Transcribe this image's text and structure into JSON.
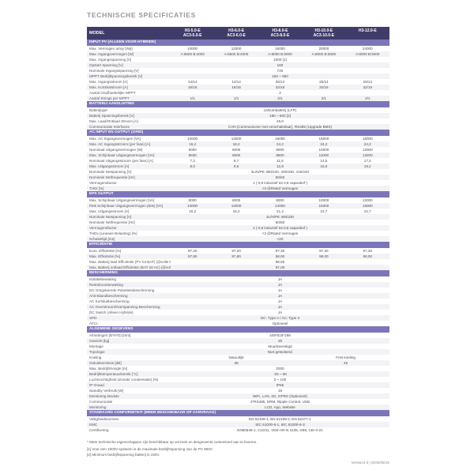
{
  "page_title": "TECHNISCHE SPECIFICATIES",
  "colors": {
    "header_bg": "#403c69",
    "section_bg": "#7c76b9",
    "stripe": "#f3f3f6",
    "title_text": "#98959f"
  },
  "table": {
    "model_header": {
      "label": "MODEL",
      "columns": [
        {
          "line1": "H3-5.0-E",
          "line2": "AC3-5.0-E"
        },
        {
          "line1": "H3-6.0-E",
          "line2": "AC3-6.0-E"
        },
        {
          "line1": "H3-8.0-E",
          "line2": "AC3-8.0-E"
        },
        {
          "line1": "H3-10.0-E",
          "line2": "AC3-10.0-E"
        },
        {
          "line1": "H3-12.0-E",
          "line2": ""
        }
      ]
    },
    "sections": [
      {
        "title": "INPUT PV (ALLEEN VOOR HYBRIDE)",
        "rows": [
          {
            "label": "Max. Vermogen array [Wp]",
            "values": [
              "10000",
              "12000",
              "16000",
              "20000",
              "24000"
            ]
          },
          {
            "label": "Max. Ingangsvermogen [W]",
            "values": [
              "A:6500 B:4000",
              "A:6500 B:4000",
              "A:8000 B:5000",
              "A:8000 B:5000",
              "A:8000 B:5000"
            ]
          },
          {
            "label": "Max. Ingangsspanning [V]",
            "value": "1000 [1]"
          },
          {
            "label": "Opstart Spanning [V]",
            "value": "160"
          },
          {
            "label": "Nominale Ingangsspanning [V]",
            "value": "720"
          },
          {
            "label": "MPPT Bedrijfspanningsbereik [V]",
            "value": "160 ~ 950"
          },
          {
            "label": "Max. Ingangsstroom [A]",
            "values": [
              "14/14",
              "14/14",
              "26/14",
              "26/14",
              "26/14"
            ]
          },
          {
            "label": "Max. Kortsluitstroom [A]",
            "values": [
              "16/16",
              "16/16",
              "32/16",
              "32/16",
              "32/16"
            ]
          },
          {
            "label": "Aantal Onafhankelijke MPPT",
            "value": "2"
          },
          {
            "label": "Aantal Strings per MPPT",
            "values": [
              "1/1",
              "1/1",
              "2/1",
              "2/1",
              "2/1"
            ]
          }
        ]
      },
      {
        "title": "BATTERIJ AANSLUITING",
        "rows": [
          {
            "label": "Batterijtype",
            "value": "Lithiumbatterij (LFP)"
          },
          {
            "label": "Batterij Spanningsbereik [V]",
            "value": "180 ~ 600 [2]"
          },
          {
            "label": "Max. Laad/Ontlaad Stroom [A]",
            "value": "26,0"
          },
          {
            "label": "Communicatie Interfaces",
            "value": "CAN (Communiceer met omschakelaar), RS485 (Upgrade BMS)"
          }
        ]
      },
      {
        "title": "AC INPUT EN OUTPUT (GRID)",
        "rows": [
          {
            "label": "Max. AC Ingangsvermogen [VA]",
            "values": [
              "10000",
              "12000",
              "16000",
              "16000",
              "16000"
            ]
          },
          {
            "label": "Max. AC Ingangsstroom (per fase) [A]",
            "values": [
              "15,2",
              "18,2",
              "24,2",
              "24,2",
              "24,2"
            ]
          },
          {
            "label": "Nominaal Uitgangsvermogen [W]",
            "values": [
              "5000",
              "6000",
              "8000",
              "10000",
              "12000"
            ]
          },
          {
            "label": "Max. Schijnbaar Uitgangsvermogen [VA]",
            "values": [
              "5500",
              "6600",
              "8800",
              "11000",
              "13200"
            ]
          },
          {
            "label": "Nominaal Uitgangsstroom (per fase) [A]",
            "values": [
              "7,2",
              "8,7",
              "11,6",
              "14,5",
              "17,4"
            ]
          },
          {
            "label": "Max. Uitgangsstroom [A]",
            "values": [
              "8,0",
              "9,6",
              "12,8",
              "16,0",
              "19,2"
            ]
          },
          {
            "label": "Nominale Netspanning [V]",
            "value": "3L/N/PE  380/220, 400/230, 415/240"
          },
          {
            "label": "Nominale Netfrequentie [Hz]",
            "value": "50/60"
          },
          {
            "label": "Vermogensfactor",
            "value": "1 ( 0,8 inductief tot 0,8 capacitief )"
          },
          {
            "label": "THDi [%]",
            "value": "<3 @Rated Vermogen"
          }
        ]
      },
      {
        "title": "EPS OUTPUT",
        "rows": [
          {
            "label": "Max. Schijnbaar Uitgangsvermogen [VA]",
            "values": [
              "5000",
              "6000",
              "8000",
              "10000",
              "12000"
            ]
          },
          {
            "label": "Piek Schijnbaar Uitgangsvermogen (60s) [VA]",
            "values": [
              "10000",
              "12000",
              "14000",
              "15000",
              "15000"
            ]
          },
          {
            "label": "Max. Uitgangsstroom [A]",
            "values": [
              "15,2",
              "18,2",
              "21,2",
              "22,7",
              "22,7"
            ]
          },
          {
            "label": "Nominale Netspanning [V]",
            "value": "3L/N/PE  400/230"
          },
          {
            "label": "Nominale Netfrequentie [Hz]",
            "value": "50/60"
          },
          {
            "label": "Vermogensfactor",
            "value": "1 ( 0,8 inductief tot 0,8 capacitief )"
          },
          {
            "label": "THDv (Lineaire Belasting) [%]",
            "value": "<3 @Rated Vermogen"
          },
          {
            "label": "Schakeltijd [ms]",
            "value": "<20"
          }
        ]
      },
      {
        "title": "EFFICIËNTIE",
        "rows": [
          {
            "label": "Euro. Efficiëntie [%]",
            "values": [
              "97,20",
              "97,20",
              "97,30",
              "97,30",
              "97,30"
            ]
          },
          {
            "label": "Max. Efficiëntie [%]",
            "values": [
              "97,80",
              "97,80",
              "98,00",
              "98,00",
              "98,00"
            ]
          },
          {
            "label": "Max. Batterij laad Efficiëntie  (PV tot BAT) (@volle belasting) [%]",
            "value": "98,50"
          },
          {
            "label": "Max. Batterij ontlaad Efficiëntie  (BAT tot AC) (@volle belasting) [%]",
            "value": "97,00"
          }
        ]
      },
      {
        "title": "BESCHERMING",
        "rows": [
          {
            "label": "Isolatiebewaking",
            "value": "JA"
          },
          {
            "label": "Reststroombewaking",
            "value": "JA"
          },
          {
            "label": "DC Omgekeerde Polariteitsbescherming",
            "value": "JA"
          },
          {
            "label": "Anti-Eilandbescherming",
            "value": "JA"
          },
          {
            "label": "AC Kortsluitbescherming",
            "value": "JA"
          },
          {
            "label": "AC Overstroom/Overspanning Bescherming",
            "value": "JA"
          },
          {
            "label": "DC Switch (Alleen Hybride)",
            "value": "JA"
          },
          {
            "label": "SPD",
            "value": "DC: Type II / AC: Type II"
          },
          {
            "label": "AFCI",
            "value": "Optioneel"
          }
        ]
      },
      {
        "title": "ALGEMENE GEGEVENS",
        "rows": [
          {
            "label": "Afmetingen (B*H*D) [mm]",
            "value": "449*519*198"
          },
          {
            "label": "Gewicht [kg]",
            "value": "28"
          },
          {
            "label": "Montage",
            "value": "Muurbevestigd"
          },
          {
            "label": "Topologie",
            "value": "Niet geïsoleerd"
          },
          {
            "label": "Koeling",
            "split": {
              "left": "Natuurlijk",
              "right": "FAN koeling"
            }
          },
          {
            "label": "Geluidsemissie [dB]",
            "split": {
              "left": "35",
              "right": "45"
            }
          },
          {
            "label": "Max. Bedrijfshoogte [m]",
            "value": "2000"
          },
          {
            "label": "Bedrijfstemperatuurbereik [°C]",
            "value": "-25 ~ 60"
          },
          {
            "label": "Luchtvochtigheid (Zonder condensatie) [%]",
            "value": "0 ~ 100"
          },
          {
            "label": "IP-Graad",
            "value": "IP65"
          },
          {
            "label": "Standby Verbruik [W]",
            "value": "15"
          },
          {
            "label": "Monitoring Module",
            "value": "WiFi, LAN, 4G, GPRS (Optioneel)"
          },
          {
            "label": "Communicatie",
            "value": "2*RS485, DRM, Ripple Control, USB"
          },
          {
            "label": "Monitoring",
            "value": "LCD, App, Website"
          }
        ]
      },
      {
        "title": "STANDAARD CONFORMITEIT (MEER BESCHIKBAAR OP AANVRAAG)",
        "rows": [
          {
            "label": "Veiligheidsnormen",
            "value": "EN 62109-1, EN 62109-2, EN 62477-1"
          },
          {
            "label": "EMC",
            "value": "IEC 61000-6-1, IEC 61000-6-3"
          },
          {
            "label": "Certificering",
            "value": "EN50549-1, C10/11, VDE-AR-N 4105, G98, CEI 0-21"
          }
        ]
      }
    ]
  },
  "footnotes": [
    "* Meer technische eigenschappen zijn beschikbaar op verzoek en desgewenst customized aan te leveren.",
    "[1] Voor een 1000V-systeem is de maximale bedrijfsspanning van de PV 950V.",
    "[2] Minimum bedrijfsspanning batterij is 150V."
  ],
  "version": "Version4.0 | 2025/05/15"
}
